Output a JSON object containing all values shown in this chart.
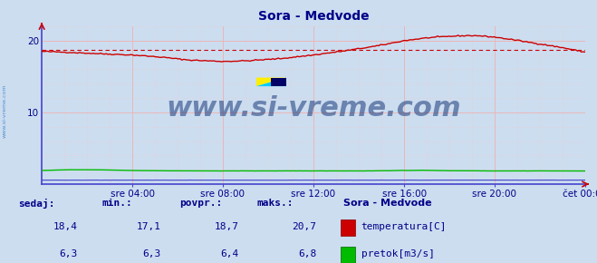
{
  "title": "Sora - Medvode",
  "bg_color": "#ccddf0",
  "plot_bg_color": "#ccddf0",
  "grid_major_color": "#e8b8b8",
  "grid_minor_color": "#eecccc",
  "x_ticks_labels": [
    "sre 04:00",
    "sre 08:00",
    "sre 12:00",
    "sre 16:00",
    "sre 20:00",
    "čet 00:00"
  ],
  "x_ticks_pos": [
    0.167,
    0.333,
    0.5,
    0.667,
    0.833,
    1.0
  ],
  "y_ticks": [
    10,
    20
  ],
  "ylim": [
    0,
    22
  ],
  "xlim": [
    0,
    1
  ],
  "avg_line_value": 18.7,
  "avg_line_color": "#cc0000",
  "temp_color": "#cc0000",
  "flow_color": "#00bb00",
  "height_color": "#4444cc",
  "watermark_color": "#1a3a7a",
  "watermark_text": "www.si-vreme.com",
  "watermark_fontsize": 22,
  "legend_title": "Sora - Medvode",
  "legend_items": [
    "temperatura[C]",
    "pretok[m3/s]"
  ],
  "legend_colors": [
    "#cc0000",
    "#00bb00"
  ],
  "stats_headers": [
    "sedaj:",
    "min.:",
    "povpr.:",
    "maks.:"
  ],
  "stats_temp": [
    "18,4",
    "17,1",
    "18,7",
    "20,7"
  ],
  "stats_flow": [
    "6,3",
    "6,3",
    "6,4",
    "6,8"
  ],
  "title_color": "#000088",
  "axis_label_color": "#000088",
  "stats_color": "#000088",
  "left_label_color": "#4488cc",
  "spine_color": "#4444cc",
  "arrow_color": "#cc0000"
}
